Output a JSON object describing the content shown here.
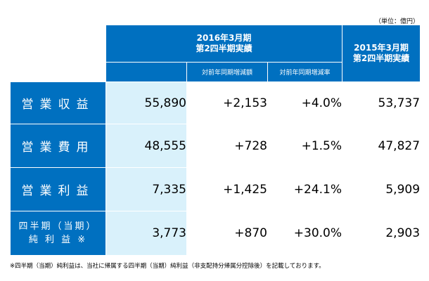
{
  "unit_note": "（単位：億円）",
  "header": {
    "current_period_line1": "2016年3月期",
    "current_period_line2": "第2四半期実績",
    "yoy_amount": "対前年同期増減額",
    "yoy_rate": "対前年同期増減率",
    "previous_period_line1": "2015年3月期",
    "previous_period_line2": "第2四半期実績"
  },
  "rows": [
    {
      "label": "営業収益",
      "current": "55,890",
      "yoy_amount": "+2,153",
      "yoy_rate": "+4.0%",
      "previous": "53,737"
    },
    {
      "label": "営業費用",
      "current": "48,555",
      "yoy_amount": "+728",
      "yoy_rate": "+1.5%",
      "previous": "47,827"
    },
    {
      "label": "営業利益",
      "current": "7,335",
      "yoy_amount": "+1,425",
      "yoy_rate": "+24.1%",
      "previous": "5,909"
    },
    {
      "label_line1": "四半期（当期）",
      "label_line2": "純 利 益 ※",
      "current": "3,773",
      "yoy_amount": "+870",
      "yoy_rate": "+30.0%",
      "previous": "2,903"
    }
  ],
  "footnote": "※四半期（当期）純利益は、当社に帰属する四半期（当期）純利益（非支配持分帰属分控除後）を記載しております。"
}
